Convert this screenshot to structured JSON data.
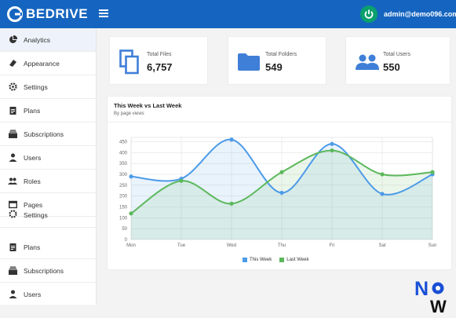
{
  "header": {
    "logo_text": "BEDRIVE",
    "account_email": "admin@demo096.com"
  },
  "sidebar": {
    "items": [
      {
        "label": "Analytics",
        "icon": "pie-chart-icon"
      },
      {
        "label": "Appearance",
        "icon": "paint-icon"
      },
      {
        "label": "Settings",
        "icon": "gear-icon"
      },
      {
        "label": "Plans",
        "icon": "clipboard-icon"
      },
      {
        "label": "Subscriptions",
        "icon": "subscriptions-icon"
      },
      {
        "label": "Users",
        "icon": "person-icon"
      },
      {
        "label": "Roles",
        "icon": "people-icon"
      },
      {
        "label": "Pages",
        "icon": "pages-icon"
      },
      {
        "label": "Settings",
        "icon": "gear-icon"
      },
      {
        "label": "Plans",
        "icon": "clipboard-icon"
      },
      {
        "label": "Subscriptions",
        "icon": "subscriptions-icon"
      },
      {
        "label": "Users",
        "icon": "person-icon"
      }
    ]
  },
  "stats": {
    "files": {
      "title": "Total Files",
      "value": "6,757"
    },
    "folders": {
      "title": "Total Folders",
      "value": "549"
    },
    "users": {
      "title": "Total Users",
      "value": "550"
    }
  },
  "chart_data": {
    "type": "line",
    "title": "This Week vs Last Week",
    "subtitle": "By page views",
    "categories": [
      "Mon",
      "Tue",
      "Wed",
      "Thu",
      "Fri",
      "Sat",
      "Sun"
    ],
    "y_ticks": [
      0,
      50,
      100,
      150,
      200,
      250,
      300,
      350,
      400,
      450
    ],
    "ylim": [
      0,
      470
    ],
    "series": [
      {
        "name": "This Week",
        "color": "#4c9be8",
        "values": [
          290,
          280,
          460,
          215,
          440,
          210,
          300
        ]
      },
      {
        "name": "Last Week",
        "color": "#5cb85c",
        "values": [
          120,
          270,
          165,
          310,
          410,
          300,
          310
        ]
      }
    ],
    "legend_position": "bottom-center",
    "grid": true
  },
  "colors": {
    "brand": "#1565c0",
    "accent": "#0aa06e"
  }
}
